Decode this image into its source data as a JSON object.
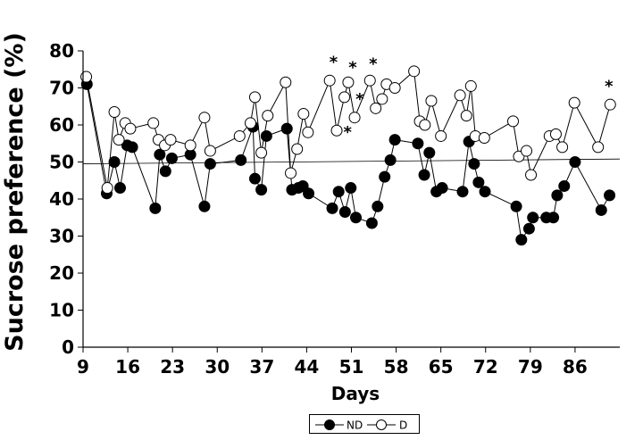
{
  "chart_data": {
    "type": "line",
    "xlabel": "Days",
    "ylabel": "Sucrose  preference (%)",
    "xlim": [
      9,
      93
    ],
    "ylim": [
      0,
      80
    ],
    "x_ticks": [
      9,
      16,
      23,
      30,
      37,
      44,
      51,
      58,
      65,
      72,
      79,
      86
    ],
    "y_ticks": [
      0,
      10,
      20,
      30,
      40,
      50,
      60,
      70,
      80
    ],
    "grid": false,
    "legend_position": "bottom-center",
    "reference_line": {
      "x": [
        9,
        93
      ],
      "y": [
        49.5,
        50.8
      ]
    },
    "annotations": [
      {
        "text": "*",
        "x": 48.2,
        "y": 78
      },
      {
        "text": "*",
        "x": 50.4,
        "y": 59
      },
      {
        "text": "*",
        "x": 51.2,
        "y": 76.5
      },
      {
        "text": "*",
        "x": 52.3,
        "y": 68
      },
      {
        "text": "*",
        "x": 54.4,
        "y": 77.5
      },
      {
        "text": "*",
        "x": 91.3,
        "y": 71.5
      }
    ],
    "series": [
      {
        "name": "ND",
        "marker": "filled-circle",
        "color": "#000000",
        "x": [
          9.6,
          12.7,
          13.9,
          14.8,
          15.9,
          16.7,
          20.3,
          21.0,
          21.9,
          22.9,
          25.8,
          28.0,
          28.9,
          33.7,
          35.6,
          35.9,
          36.9,
          37.7,
          40.9,
          41.7,
          42.7,
          43.4,
          44.3,
          48.0,
          49.0,
          50.0,
          50.9,
          51.7,
          54.2,
          55.1,
          56.2,
          57.1,
          57.8,
          61.4,
          62.4,
          63.2,
          64.3,
          65.2,
          68.4,
          69.4,
          70.2,
          70.9,
          71.9,
          76.8,
          77.6,
          78.8,
          79.4,
          81.5,
          82.6,
          83.2,
          84.3,
          86.0,
          90.1,
          91.4
        ],
        "y": [
          71.0,
          41.5,
          50.0,
          43.0,
          54.5,
          54.0,
          37.5,
          52.0,
          47.5,
          51.0,
          52.0,
          38.0,
          49.5,
          50.5,
          59.5,
          45.5,
          42.5,
          57.0,
          59.0,
          42.5,
          43.0,
          43.5,
          41.5,
          37.5,
          42.0,
          36.5,
          43.0,
          35.0,
          33.5,
          38.0,
          46.0,
          50.5,
          56.0,
          55.0,
          46.5,
          52.5,
          42.0,
          43.0,
          42.0,
          55.5,
          49.5,
          44.5,
          42.0,
          38.0,
          29.0,
          32.0,
          35.0,
          35.0,
          35.0,
          41.0,
          43.5,
          50.0,
          37.0,
          41.0
        ]
      },
      {
        "name": "D",
        "marker": "open-circle",
        "color": "#000000",
        "x": [
          9.5,
          12.8,
          13.9,
          14.6,
          15.6,
          16.4,
          20.0,
          20.8,
          21.8,
          22.7,
          25.8,
          28.0,
          28.9,
          33.5,
          35.2,
          35.9,
          36.9,
          37.9,
          40.7,
          41.5,
          42.5,
          43.5,
          44.2,
          47.6,
          48.7,
          49.9,
          50.5,
          51.5,
          53.9,
          54.8,
          55.8,
          56.5,
          57.8,
          60.8,
          61.7,
          62.5,
          63.5,
          65.0,
          68.0,
          69.0,
          69.7,
          70.4,
          71.8,
          76.3,
          77.2,
          78.4,
          79.1,
          82.0,
          83.0,
          84.0,
          85.9,
          89.6,
          91.5
        ],
        "y": [
          73.0,
          43.0,
          63.5,
          56.0,
          60.5,
          59.0,
          60.5,
          56.0,
          54.5,
          56.0,
          54.5,
          62.0,
          53.0,
          57.0,
          60.5,
          67.5,
          52.5,
          62.5,
          71.5,
          47.0,
          53.5,
          63.0,
          58.0,
          72.0,
          58.5,
          67.5,
          71.5,
          62.0,
          72.0,
          64.5,
          67.0,
          71.0,
          70.0,
          74.5,
          61.0,
          60.0,
          66.5,
          57.0,
          68.0,
          62.5,
          70.5,
          57.0,
          56.5,
          61.0,
          51.5,
          53.0,
          46.5,
          57.0,
          57.5,
          54.0,
          66.0,
          54.0,
          65.5
        ]
      }
    ]
  }
}
